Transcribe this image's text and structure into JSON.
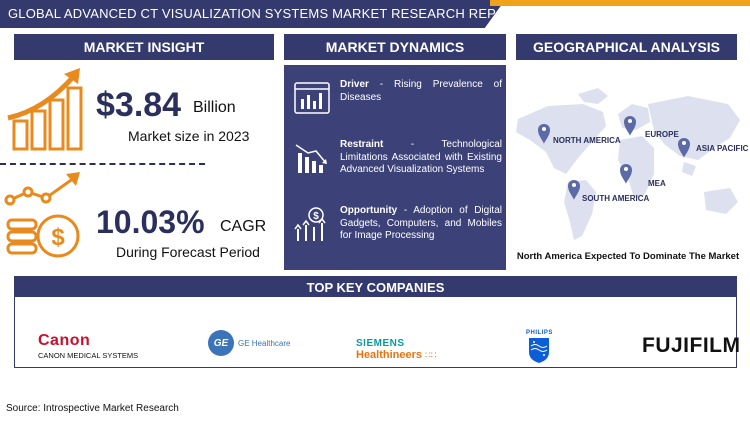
{
  "title": "GLOBAL ADVANCED CT VISUALIZATION SYSTEMS MARKET RESEARCH REPORT",
  "sections": {
    "insight": "MARKET INSIGHT",
    "dynamics": "MARKET DYNAMICS",
    "geo": "GEOGRAPHICAL ANALYSIS",
    "companies": "TOP KEY COMPANIES"
  },
  "insight": {
    "market_value": "$3.84",
    "market_unit": "Billion",
    "market_caption": "Market size in 2023",
    "cagr_value": "10.03%",
    "cagr_unit": "CAGR",
    "cagr_caption": "During Forecast Period"
  },
  "dynamics": [
    {
      "label": "Driver",
      "text": " - Rising Prevalence of Diseases"
    },
    {
      "label": "Restraint",
      "text": " - Technological Limitations Associated with Existing Advanced Visualization Systems"
    },
    {
      "label": "Opportunity",
      "text": " - Adoption of Digital Gadgets, Computers, and Mobiles for Image Processing"
    }
  ],
  "geo": {
    "regions": [
      "NORTH AMERICA",
      "EUROPE",
      "ASIA PACIFIC",
      "MEA",
      "SOUTH AMERICA"
    ],
    "dominate": "North America Expected To Dominate The Market"
  },
  "companies": {
    "canon_brand": "Canon",
    "canon_sub": "CANON MEDICAL SYSTEMS",
    "ge": "GE Healthcare",
    "ge_mono": "GE",
    "siemens_top": "SIEMENS",
    "siemens_bottom": "Healthineers",
    "philips": "PHILIPS",
    "fujifilm": "FUJIFILM"
  },
  "source": "Source: Introspective Market Research",
  "colors": {
    "navy": "#34396e",
    "orange": "#f0a21a",
    "panel": "#3c4278"
  }
}
